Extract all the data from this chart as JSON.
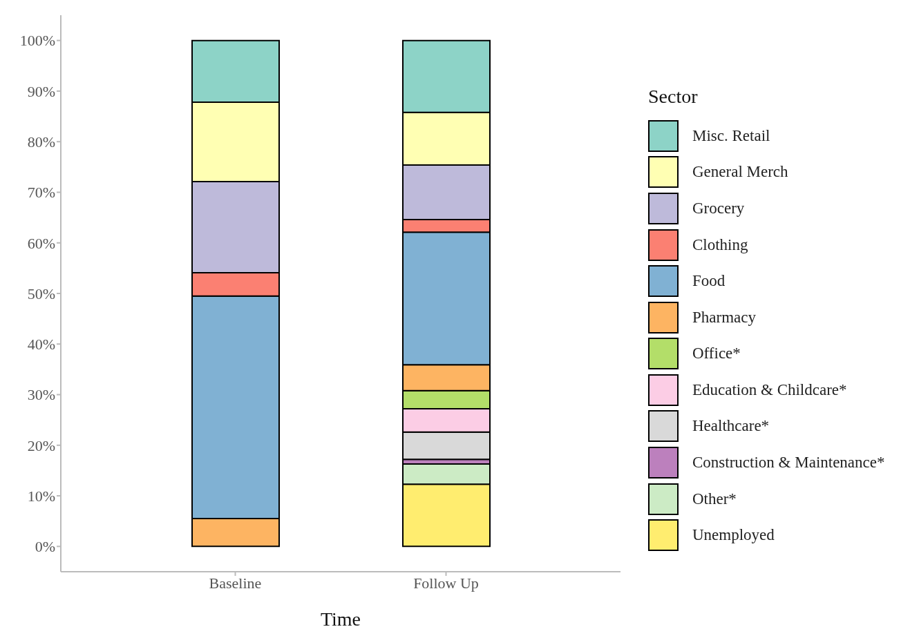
{
  "chart_data": {
    "type": "bar",
    "stacked": true,
    "xlabel": "Time",
    "legend_title": "Sector",
    "legend": "right",
    "categories": [
      "Baseline",
      "Follow Up"
    ],
    "ylim": [
      -5,
      105
    ],
    "yticks": [
      {
        "value": 0,
        "label": "0%"
      },
      {
        "value": 10,
        "label": "10%"
      },
      {
        "value": 20,
        "label": "20%"
      },
      {
        "value": 30,
        "label": "30%"
      },
      {
        "value": 40,
        "label": "40%"
      },
      {
        "value": 50,
        "label": "50%"
      },
      {
        "value": 60,
        "label": "60%"
      },
      {
        "value": 70,
        "label": "70%"
      },
      {
        "value": 80,
        "label": "80%"
      },
      {
        "value": 90,
        "label": "90%"
      },
      {
        "value": 100,
        "label": "100%"
      }
    ],
    "series": [
      {
        "name": "Unemployed",
        "color": "#ffed6f",
        "values": [
          null,
          12.3
        ]
      },
      {
        "name": "Other*",
        "color": "#ccebc5",
        "values": [
          null,
          4.0
        ]
      },
      {
        "name": "Construction & Maintenance*",
        "color": "#bc80bd",
        "values": [
          null,
          0.9
        ]
      },
      {
        "name": "Healthcare*",
        "color": "#d9d9d9",
        "values": [
          null,
          5.4
        ]
      },
      {
        "name": "Education & Childcare*",
        "color": "#fccde5",
        "values": [
          null,
          4.6
        ]
      },
      {
        "name": "Office*",
        "color": "#b3de69",
        "values": [
          null,
          3.6
        ]
      },
      {
        "name": "Pharmacy",
        "color": "#fdb462",
        "values": [
          5.5,
          5.1
        ]
      },
      {
        "name": "Food",
        "color": "#80b1d3",
        "values": [
          44.0,
          26.2
        ]
      },
      {
        "name": "Clothing",
        "color": "#fb8072",
        "values": [
          4.6,
          2.5
        ]
      },
      {
        "name": "Grocery",
        "color": "#bebada",
        "values": [
          18.0,
          10.8
        ]
      },
      {
        "name": "General Merch",
        "color": "#ffffb3",
        "values": [
          15.7,
          10.4
        ]
      },
      {
        "name": "Misc. Retail",
        "color": "#8dd3c7",
        "values": [
          12.2,
          14.2
        ]
      }
    ]
  }
}
